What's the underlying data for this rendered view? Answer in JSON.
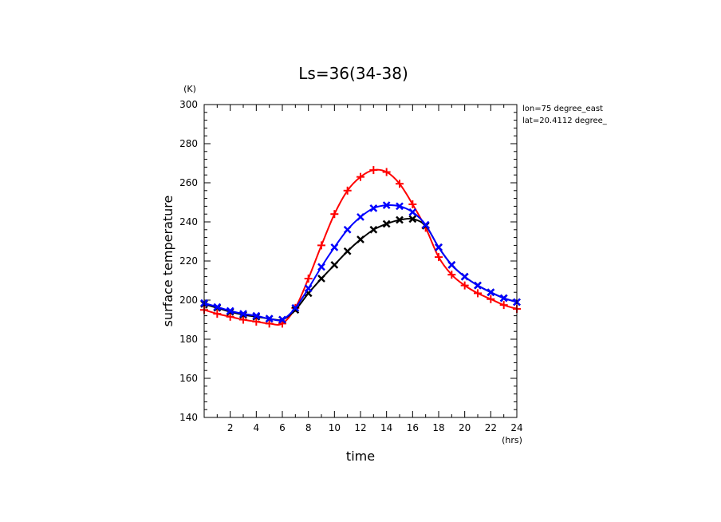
{
  "chart_data": {
    "type": "line",
    "title": "Ls=36(34-38)",
    "xlabel": "time",
    "ylabel": "surface temperature",
    "x_unit": "(hrs)",
    "y_unit": "(K)",
    "xlim": [
      0,
      24
    ],
    "ylim": [
      140,
      300
    ],
    "x_ticks": [
      2,
      4,
      6,
      8,
      10,
      12,
      14,
      16,
      18,
      20,
      22,
      24
    ],
    "y_ticks": [
      140,
      160,
      180,
      200,
      220,
      240,
      260,
      280,
      300
    ],
    "grid": false,
    "annotations": [
      "lon=75 degree_east",
      "lat=20.4112 degree_"
    ],
    "x": [
      0,
      1,
      2,
      3,
      4,
      5,
      6,
      7,
      8,
      9,
      10,
      11,
      12,
      13,
      14,
      15,
      16,
      17,
      18,
      19,
      20,
      21,
      22,
      23,
      24
    ],
    "series": [
      {
        "color": "#ff0000",
        "marker": "plus",
        "values": [
          195,
          193,
          191.5,
          190,
          189,
          188,
          188,
          196,
          211,
          228,
          244,
          256,
          263,
          266.5,
          265.5,
          259.5,
          249,
          237,
          222,
          213,
          207.5,
          203.5,
          200.5,
          197.5,
          195.5
        ]
      },
      {
        "color": "#000000",
        "marker": "x",
        "values": [
          198,
          196,
          194,
          192.5,
          191.5,
          190.5,
          190,
          195,
          203.5,
          211,
          218,
          225,
          231,
          236,
          239,
          241,
          241.5,
          238,
          227,
          218,
          212,
          207.5,
          204,
          201,
          199
        ]
      },
      {
        "color": "#0000ff",
        "marker": "x",
        "values": [
          198.5,
          196.5,
          194.5,
          193,
          192,
          190.5,
          190,
          196,
          206,
          217,
          227,
          236,
          242.5,
          247,
          248.5,
          248,
          245,
          238.5,
          227,
          218,
          212,
          207.5,
          204,
          201,
          199
        ]
      }
    ]
  }
}
